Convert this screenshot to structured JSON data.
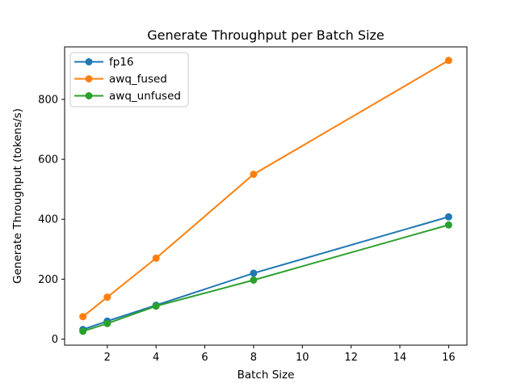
{
  "chart_data": {
    "type": "line",
    "title": "Generate Throughput per Batch Size",
    "xlabel": "Batch Size",
    "ylabel": "Generate Throughput (tokens/s)",
    "x": [
      1,
      2,
      4,
      8,
      16
    ],
    "series": [
      {
        "name": "fp16",
        "color": "#1f77b4",
        "values": [
          32,
          60,
          113,
          220,
          408
        ]
      },
      {
        "name": "awq_fused",
        "color": "#ff7f0e",
        "values": [
          75,
          140,
          270,
          550,
          930
        ]
      },
      {
        "name": "awq_unfused",
        "color": "#2ca02c",
        "values": [
          26,
          52,
          110,
          197,
          381
        ]
      }
    ],
    "xticks": [
      2,
      4,
      6,
      8,
      10,
      12,
      14,
      16
    ],
    "yticks": [
      0,
      200,
      400,
      600,
      800
    ],
    "xlim": [
      0.25,
      16.75
    ],
    "ylim": [
      -20.25,
      975.25
    ],
    "grid": false,
    "marker": "circle",
    "legend": {
      "position": "upper-left",
      "entries": [
        "fp16",
        "awq_fused",
        "awq_unfused"
      ],
      "border_color": "#cccccc",
      "background": "#ffffff"
    },
    "spine_color": "#000000",
    "background": "#ffffff"
  }
}
